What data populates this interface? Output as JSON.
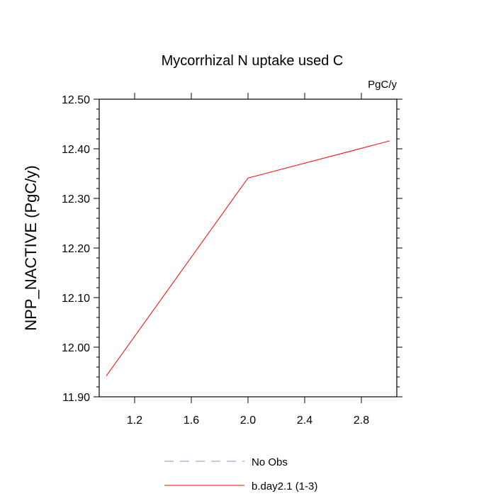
{
  "chart_data": {
    "type": "line",
    "title": "Mycorrhizal N uptake used C",
    "units_label": "PgC/y",
    "ylabel": "NPP_NACTIVE  (PgC/y)",
    "xlabel": "",
    "xlim": [
      0.95,
      3.05
    ],
    "ylim": [
      11.9,
      12.5
    ],
    "x_ticks": [
      1.2,
      1.6,
      2.0,
      2.4,
      2.8
    ],
    "x_tick_labels": [
      "1.2",
      "1.6",
      "2.0",
      "2.4",
      "2.8"
    ],
    "y_ticks": [
      11.9,
      12.0,
      12.1,
      12.2,
      12.3,
      12.4,
      12.5
    ],
    "y_tick_labels": [
      "11.90",
      "12.00",
      "12.10",
      "12.20",
      "12.30",
      "12.40",
      "12.50"
    ],
    "grid": false,
    "legend_placement": "bottom-center",
    "series": [
      {
        "name": "b.day2.1 (1-3)",
        "color": "#ff0000",
        "style": "solid",
        "x": [
          1,
          2,
          3
        ],
        "y": [
          11.942,
          12.341,
          12.416
        ]
      }
    ],
    "legend": [
      {
        "label": "No Obs",
        "color": "#8f8fe0",
        "style": "dashed"
      },
      {
        "label": "b.day2.1 (1-3)",
        "color": "#ff0000",
        "style": "solid"
      }
    ]
  }
}
